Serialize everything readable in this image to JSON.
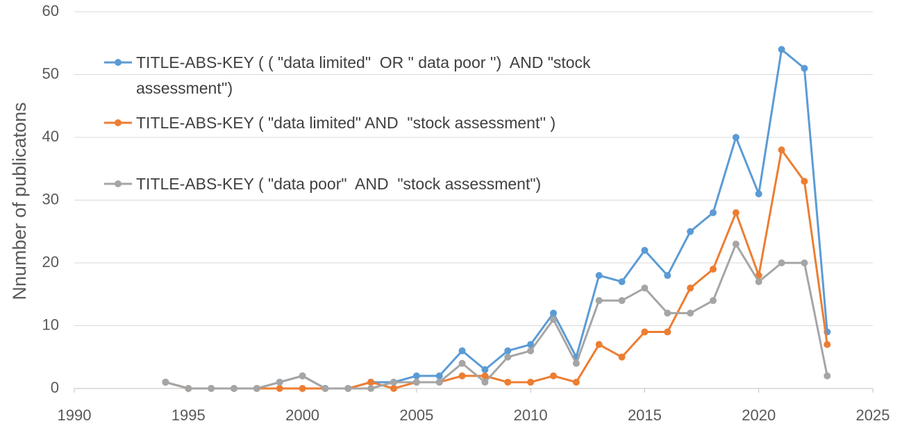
{
  "chart_data": {
    "type": "line",
    "y_label": "Nnumber of publicatons",
    "x": [
      1994,
      1995,
      1996,
      1997,
      1998,
      1999,
      2000,
      2001,
      2002,
      2003,
      2004,
      2005,
      2006,
      2007,
      2008,
      2009,
      2010,
      2011,
      2012,
      2013,
      2014,
      2015,
      2016,
      2017,
      2018,
      2019,
      2020,
      2021,
      2022,
      2023
    ],
    "series": [
      {
        "name": "TITLE-ABS-KEY ( ( \"data limited\"  OR \" data poor '')  AND \"stock assessment'')",
        "color": "#5b9bd5",
        "values": [
          1,
          0,
          0,
          0,
          0,
          1,
          2,
          0,
          0,
          1,
          1,
          2,
          2,
          6,
          3,
          6,
          7,
          12,
          5,
          18,
          17,
          22,
          18,
          25,
          28,
          40,
          31,
          54,
          51,
          9
        ]
      },
      {
        "name": "TITLE-ABS-KEY ( \"data limited\" AND  \"stock assessment'' )",
        "color": "#ed7d31",
        "values": [
          1,
          0,
          0,
          0,
          0,
          0,
          0,
          0,
          0,
          1,
          0,
          1,
          1,
          2,
          2,
          1,
          1,
          2,
          1,
          7,
          5,
          9,
          9,
          16,
          19,
          28,
          18,
          38,
          33,
          7
        ]
      },
      {
        "name": "TITLE-ABS-KEY ( \"data poor\"  AND  \"stock assessment\")",
        "color": "#a5a5a5",
        "values": [
          1,
          0,
          0,
          0,
          0,
          1,
          2,
          0,
          0,
          0,
          1,
          1,
          1,
          4,
          1,
          5,
          6,
          11,
          4,
          14,
          14,
          16,
          12,
          12,
          14,
          23,
          17,
          20,
          20,
          2
        ]
      }
    ],
    "xlim": [
      1990,
      2025
    ],
    "xticks": [
      1990,
      1995,
      2000,
      2005,
      2010,
      2015,
      2020,
      2025
    ],
    "ylim": [
      0,
      60
    ],
    "yticks": [
      0,
      10,
      20,
      30,
      40,
      50,
      60
    ],
    "grid": true,
    "legend": "upper left"
  }
}
